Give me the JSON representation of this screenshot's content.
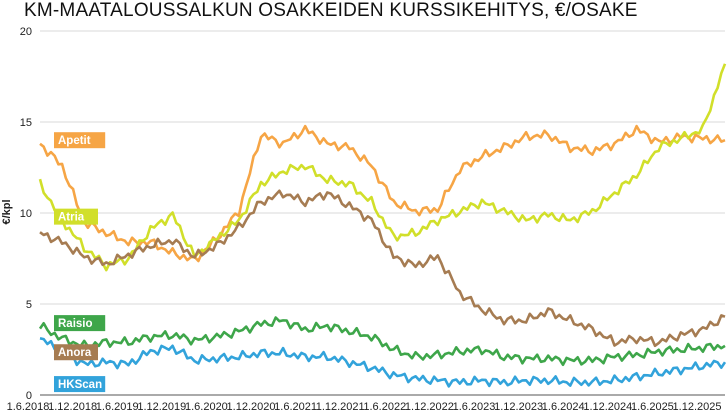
{
  "chart_data": {
    "type": "line",
    "title": "KM-MAATALOUSSALKUN OSAKKEIDEN KURSSIKEHITYS, €/OSAKE",
    "ylabel": "€/kpl",
    "xlabel": "",
    "ylim": [
      0,
      20
    ],
    "yticks": [
      "0",
      "5",
      "10",
      "15",
      "20"
    ],
    "grid": "horizontal",
    "x_tick_labels": [
      "1.6.2018",
      "1.12.2018",
      "1.6.2019",
      "1.12.2019",
      "1.6.2020",
      "1.12.2020",
      "1.6.2021",
      "1.12.2021",
      "1.6.2022",
      "1.12.2022",
      "1.6.2023",
      "1.12.2023",
      "1.6.2024",
      "1.12.2024",
      "1.6.2025",
      "1.12.2025"
    ],
    "x": [
      "2018-06",
      "2018-09",
      "2018-12",
      "2019-03",
      "2019-06",
      "2019-09",
      "2019-12",
      "2020-03",
      "2020-06",
      "2020-09",
      "2020-12",
      "2021-03",
      "2021-06",
      "2021-09",
      "2021-12",
      "2022-03",
      "2022-06",
      "2022-09",
      "2022-12",
      "2023-03",
      "2023-06",
      "2023-09",
      "2023-12",
      "2024-03",
      "2024-06",
      "2024-09",
      "2024-12",
      "2025-03",
      "2025-06",
      "2025-09",
      "2025-12",
      "2026-01"
    ],
    "series": [
      {
        "name": "Apetit",
        "color": "#f6a545",
        "values": [
          13.8,
          12.6,
          9.5,
          8.9,
          8.4,
          8.4,
          7.8,
          7.4,
          8.6,
          10.1,
          14.3,
          13.8,
          14.6,
          13.8,
          13.6,
          12.6,
          10.6,
          10.1,
          10.2,
          12.4,
          13.1,
          13.6,
          14.2,
          14.3,
          13.6,
          13.4,
          13.8,
          14.6,
          13.9,
          14.2,
          14.1,
          14.0
        ]
      },
      {
        "name": "Atria",
        "color": "#d1df2a",
        "values": [
          11.6,
          9.6,
          8.1,
          7.1,
          7.5,
          9.1,
          9.9,
          7.6,
          8.6,
          9.6,
          11.6,
          12.3,
          12.6,
          11.8,
          11.6,
          10.6,
          8.7,
          8.9,
          9.6,
          10.1,
          10.6,
          10.1,
          9.6,
          9.9,
          9.6,
          10.1,
          11.1,
          12.1,
          13.6,
          14.1,
          14.6,
          18.2
        ]
      },
      {
        "name": "Anora",
        "color": "#a67c52",
        "values": [
          8.9,
          8.4,
          7.6,
          7.2,
          7.7,
          8.2,
          8.5,
          7.6,
          8.2,
          9.2,
          10.6,
          11.1,
          10.6,
          11.1,
          10.4,
          9.6,
          7.6,
          7.1,
          7.6,
          5.6,
          4.7,
          4.1,
          4.1,
          4.6,
          4.1,
          3.6,
          2.9,
          3.1,
          2.9,
          3.3,
          3.6,
          4.3
        ]
      },
      {
        "name": "Raisio",
        "color": "#3ea64a",
        "values": [
          3.8,
          3.1,
          2.7,
          2.9,
          2.9,
          3.2,
          3.3,
          3.0,
          3.2,
          3.5,
          3.9,
          4.1,
          3.6,
          3.8,
          3.5,
          3.2,
          2.5,
          2.1,
          2.2,
          2.4,
          2.5,
          2.1,
          2.0,
          2.0,
          1.9,
          1.9,
          2.1,
          2.2,
          2.4,
          2.5,
          2.6,
          2.7
        ]
      },
      {
        "name": "HKScan",
        "color": "#32a3db",
        "values": [
          3.1,
          2.4,
          1.7,
          1.8,
          1.7,
          2.4,
          2.6,
          1.9,
          2.0,
          2.1,
          2.3,
          2.3,
          2.1,
          2.1,
          1.8,
          1.5,
          1.1,
          0.9,
          0.8,
          0.7,
          0.8,
          0.7,
          0.8,
          0.8,
          0.7,
          0.7,
          0.8,
          1.0,
          1.2,
          1.4,
          1.6,
          1.8
        ]
      }
    ],
    "legend": [
      {
        "name": "Apetit",
        "value": 14.0
      },
      {
        "name": "Atria",
        "value": 9.8
      },
      {
        "name": "Anora",
        "value": 2.35
      },
      {
        "name": "Raisio",
        "value": 3.95
      },
      {
        "name": "HKScan",
        "value": 0.6
      }
    ]
  }
}
